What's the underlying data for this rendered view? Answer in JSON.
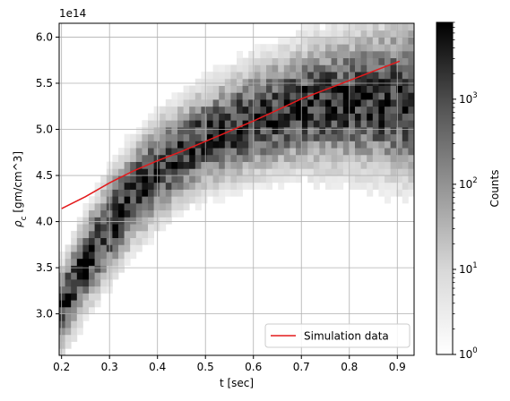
{
  "chart_data": {
    "type": "heatmap",
    "xlabel": "t [sec]",
    "ylabel_parts": {
      "rho": "ρ",
      "sub": "c",
      "rest": " [gm/cm^3]"
    },
    "offset_text": "1e14",
    "xlim": [
      0.195,
      0.935
    ],
    "ylim": [
      255000000000000.0,
      615000000000000.0
    ],
    "xticks": [
      0.2,
      0.3,
      0.4,
      0.5,
      0.6,
      0.7,
      0.8,
      0.9
    ],
    "xtick_labels": [
      "0.2",
      "0.3",
      "0.4",
      "0.5",
      "0.6",
      "0.7",
      "0.8",
      "0.9"
    ],
    "yticks": [
      300000000000000.0,
      350000000000000.0,
      400000000000000.0,
      450000000000000.0,
      500000000000000.0,
      550000000000000.0,
      600000000000000.0
    ],
    "ytick_labels": [
      "3.0",
      "3.5",
      "4.0",
      "4.5",
      "5.0",
      "5.5",
      "6.0"
    ],
    "grid": true,
    "colormap": "Greys",
    "colorbar": {
      "label": "Counts",
      "scale": "log",
      "range": [
        1,
        8000
      ],
      "tick_values": [
        1,
        10,
        100,
        1000
      ],
      "tick_bases": [
        "10",
        "10",
        "10",
        "10"
      ],
      "tick_exponents": [
        "0",
        "1",
        "2",
        "3"
      ]
    },
    "density_band": {
      "description_points_t": [
        0.2,
        0.25,
        0.3,
        0.35,
        0.4,
        0.45,
        0.5,
        0.55,
        0.6,
        0.65,
        0.7,
        0.75,
        0.8,
        0.85,
        0.9,
        0.93
      ],
      "center_rho": [
        305000000000000.0,
        355000000000000.0,
        395000000000000.0,
        430000000000000.0,
        455000000000000.0,
        475000000000000.0,
        490000000000000.0,
        500000000000000.0,
        510000000000000.0,
        518000000000000.0,
        525000000000000.0,
        528000000000000.0,
        530000000000000.0,
        532000000000000.0,
        532000000000000.0,
        532000000000000.0
      ],
      "halfwidth_rho": [
        32000000000000.0,
        36000000000000.0,
        38000000000000.0,
        38000000000000.0,
        38000000000000.0,
        38000000000000.0,
        38000000000000.0,
        40000000000000.0,
        42000000000000.0,
        44000000000000.0,
        46000000000000.0,
        50000000000000.0,
        52000000000000.0,
        56000000000000.0,
        60000000000000.0,
        62000000000000.0
      ]
    },
    "series": [
      {
        "name": "Simulation data",
        "type": "line",
        "color": "#e31a1c",
        "x": [
          0.2,
          0.25,
          0.3,
          0.35,
          0.4,
          0.45,
          0.5,
          0.55,
          0.6,
          0.65,
          0.7,
          0.75,
          0.8,
          0.85,
          0.9,
          0.905
        ],
        "y": [
          414000000000000.0,
          427000000000000.0,
          442000000000000.0,
          455000000000000.0,
          466000000000000.0,
          476000000000000.0,
          487000000000000.0,
          498000000000000.0,
          509000000000000.0,
          521000000000000.0,
          533000000000000.0,
          543000000000000.0,
          553000000000000.0,
          563000000000000.0,
          573000000000000.0,
          574000000000000.0
        ]
      }
    ],
    "legend": {
      "position": "lower-right"
    }
  }
}
